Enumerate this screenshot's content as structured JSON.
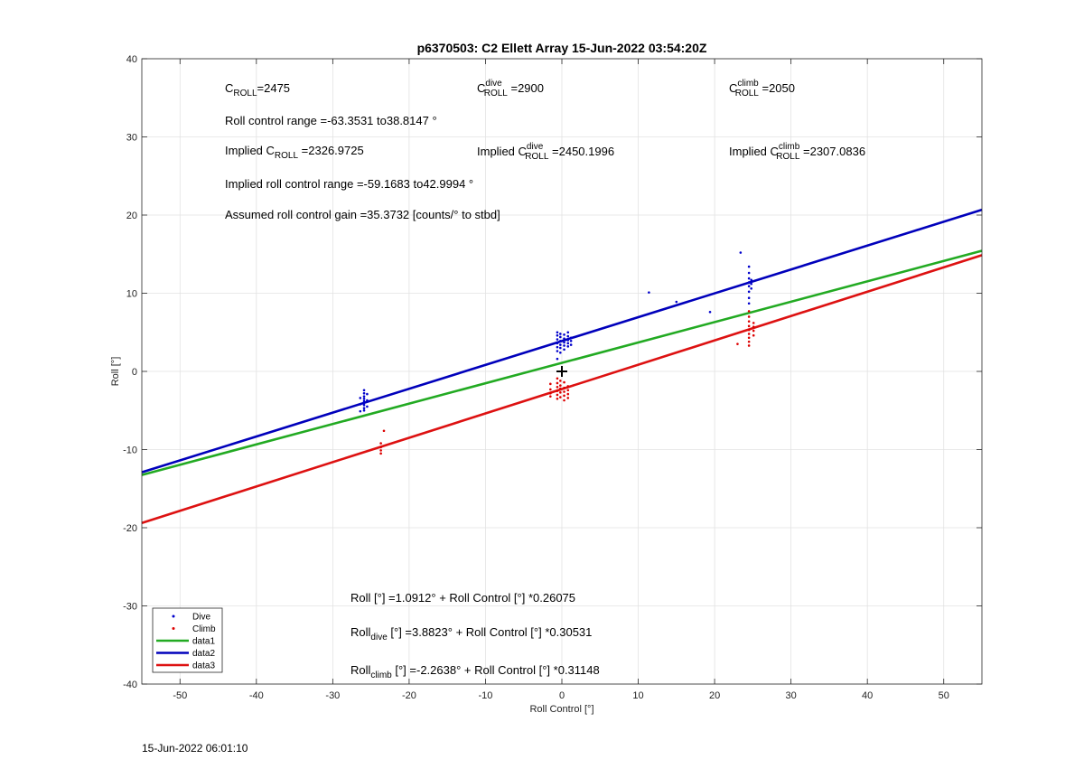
{
  "chart_data": {
    "type": "scatter",
    "title": "p6370503: C2 Ellett Array 15-Jun-2022 03:54:20Z",
    "xlabel": "Roll Control [°]",
    "ylabel": "Roll [°]",
    "xlim": [
      -55,
      55
    ],
    "ylim": [
      -40,
      40
    ],
    "xticks": [
      -50,
      -40,
      -30,
      -20,
      -10,
      0,
      10,
      20,
      30,
      40,
      50
    ],
    "yticks": [
      -40,
      -30,
      -20,
      -10,
      0,
      10,
      20,
      30,
      40
    ],
    "grid": true,
    "legend_position": "bottom-left",
    "legend": [
      {
        "label": "Dive",
        "kind": "marker",
        "color": "#0000cc"
      },
      {
        "label": "Climb",
        "kind": "marker",
        "color": "#dd0000"
      },
      {
        "label": "data1",
        "kind": "line",
        "color": "#22aa22"
      },
      {
        "label": "data2",
        "kind": "line",
        "color": "#0000bb"
      },
      {
        "label": "data3",
        "kind": "line",
        "color": "#dd1111"
      }
    ],
    "lines": [
      {
        "name": "data1",
        "color": "#22aa22",
        "intercept": 1.0912,
        "slope": 0.26075
      },
      {
        "name": "data2",
        "color": "#0000bb",
        "intercept": 3.8823,
        "slope": 0.30531
      },
      {
        "name": "data3",
        "color": "#dd1111",
        "intercept": -2.2638,
        "slope": 0.31148
      }
    ],
    "series": [
      {
        "name": "Dive",
        "color": "#0000cc",
        "points": [
          [
            -25.9,
            -2.4
          ],
          [
            -25.9,
            -2.8
          ],
          [
            -25.9,
            -3.2
          ],
          [
            -25.9,
            -3.5
          ],
          [
            -25.9,
            -3.8
          ],
          [
            -25.9,
            -4.0
          ],
          [
            -25.9,
            -4.3
          ],
          [
            -25.9,
            -4.7
          ],
          [
            -25.9,
            -5.0
          ],
          [
            -26.4,
            -3.4
          ],
          [
            -26.4,
            -4.2
          ],
          [
            -26.4,
            -5.1
          ],
          [
            -25.5,
            -3.7
          ],
          [
            -25.5,
            -4.5
          ],
          [
            -25.5,
            -2.9
          ],
          [
            -0.6,
            1.6
          ],
          [
            -0.6,
            2.6
          ],
          [
            -0.6,
            3.1
          ],
          [
            -0.6,
            3.6
          ],
          [
            -0.6,
            4.1
          ],
          [
            -0.6,
            4.6
          ],
          [
            -0.6,
            5.0
          ],
          [
            -0.2,
            2.4
          ],
          [
            -0.2,
            3.0
          ],
          [
            -0.2,
            3.4
          ],
          [
            -0.2,
            3.9
          ],
          [
            -0.2,
            4.4
          ],
          [
            -0.2,
            4.8
          ],
          [
            0.3,
            2.8
          ],
          [
            0.3,
            3.3
          ],
          [
            0.3,
            3.7
          ],
          [
            0.3,
            4.2
          ],
          [
            0.3,
            4.7
          ],
          [
            0.8,
            3.2
          ],
          [
            0.8,
            3.6
          ],
          [
            0.8,
            4.0
          ],
          [
            0.8,
            4.5
          ],
          [
            0.8,
            5.0
          ],
          [
            1.2,
            3.4
          ],
          [
            1.2,
            3.9
          ],
          [
            1.2,
            4.3
          ],
          [
            11.4,
            10.1
          ],
          [
            15.0,
            8.9
          ],
          [
            19.4,
            7.6
          ],
          [
            23.4,
            15.2
          ],
          [
            24.5,
            8.7
          ],
          [
            24.5,
            9.4
          ],
          [
            24.5,
            10.2
          ],
          [
            24.5,
            10.9
          ],
          [
            24.5,
            11.4
          ],
          [
            24.5,
            11.9
          ],
          [
            24.5,
            12.6
          ],
          [
            24.5,
            13.4
          ],
          [
            24.8,
            10.6
          ],
          [
            24.8,
            11.2
          ],
          [
            24.8,
            11.7
          ]
        ]
      },
      {
        "name": "Climb",
        "color": "#dd0000",
        "points": [
          [
            -23.3,
            -7.6
          ],
          [
            -23.7,
            -9.2
          ],
          [
            -23.7,
            -9.7
          ],
          [
            -23.7,
            -10.1
          ],
          [
            -23.7,
            -10.5
          ],
          [
            -1.5,
            -1.6
          ],
          [
            -1.5,
            -2.3
          ],
          [
            -1.5,
            -2.8
          ],
          [
            -1.5,
            -3.2
          ],
          [
            -0.6,
            -0.9
          ],
          [
            -0.6,
            -1.5
          ],
          [
            -0.6,
            -2.0
          ],
          [
            -0.6,
            -2.5
          ],
          [
            -0.6,
            -3.0
          ],
          [
            -0.6,
            -3.5
          ],
          [
            -0.2,
            -1.2
          ],
          [
            -0.2,
            -1.8
          ],
          [
            -0.2,
            -2.2
          ],
          [
            -0.2,
            -2.7
          ],
          [
            -0.2,
            -3.3
          ],
          [
            0.3,
            -1.4
          ],
          [
            0.3,
            -2.1
          ],
          [
            0.3,
            -2.6
          ],
          [
            0.3,
            -3.1
          ],
          [
            0.3,
            -3.7
          ],
          [
            0.8,
            -1.9
          ],
          [
            0.8,
            -2.4
          ],
          [
            0.8,
            -2.9
          ],
          [
            0.8,
            -3.4
          ],
          [
            23.0,
            3.5
          ],
          [
            24.5,
            3.3
          ],
          [
            24.5,
            3.8
          ],
          [
            24.5,
            4.3
          ],
          [
            24.5,
            4.8
          ],
          [
            24.5,
            5.3
          ],
          [
            24.5,
            5.8
          ],
          [
            24.5,
            6.4
          ],
          [
            24.5,
            7.0
          ],
          [
            24.5,
            7.7
          ],
          [
            25.1,
            4.6
          ],
          [
            25.1,
            5.2
          ],
          [
            25.1,
            5.7
          ],
          [
            25.1,
            6.2
          ]
        ]
      }
    ],
    "origin_marker": [
      0,
      0
    ],
    "annotations": {
      "c_roll": {
        "base": "C",
        "sub": "ROLL",
        "value": "=2475"
      },
      "c_roll_dive": {
        "base": "C",
        "sup": "dive",
        "sub": "ROLL",
        "value": " =2900"
      },
      "c_roll_climb": {
        "base": "C",
        "sup": "climb",
        "sub": "ROLL",
        "value": " =2050"
      },
      "roll_control_range": "Roll control range =-63.3531 to38.8147 °",
      "implied_c_roll": {
        "prefix": "Implied C",
        "sub": "ROLL",
        "value": " =2326.9725"
      },
      "implied_c_roll_dive": {
        "prefix": "Implied C",
        "sup": "dive",
        "sub": "ROLL",
        "value": " =2450.1996"
      },
      "implied_c_roll_climb": {
        "prefix": "Implied C",
        "sup": "climb",
        "sub": "ROLL",
        "value": " =2307.0836"
      },
      "implied_roll_range": "Implied roll control range =-59.1683 to42.9994 °",
      "assumed_gain": "Assumed roll control gain =35.3732 [counts/° to stbd]",
      "fit_all": "Roll [°] =1.0912° + Roll Control [°] *0.26075",
      "fit_dive": {
        "base": "Roll",
        "sub": "dive",
        "rest": " [°] =3.8823° + Roll Control [°] *0.30531"
      },
      "fit_climb": {
        "base": "Roll",
        "sub": "climb",
        "rest": " [°] =-2.2638° + Roll Control [°] *0.31148"
      }
    }
  },
  "footer": {
    "timestamp": "15-Jun-2022 06:01:10"
  }
}
